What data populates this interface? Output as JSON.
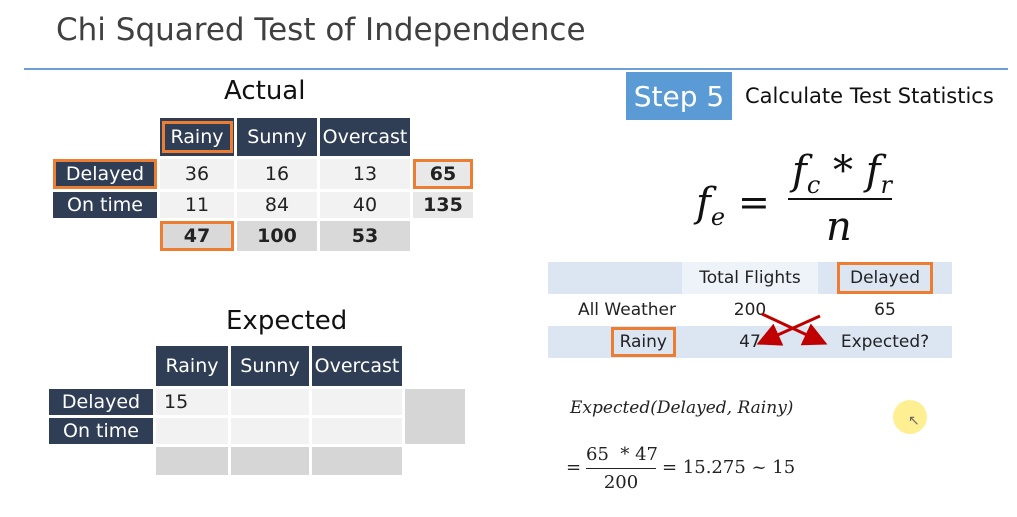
{
  "slide": {
    "title": "Chi Squared Test of Independence"
  },
  "actual": {
    "caption": "Actual",
    "headers": [
      "Rainy",
      "Sunny",
      "Overcast"
    ],
    "rows": [
      {
        "label": "Delayed",
        "values": [
          "36",
          "16",
          "13"
        ],
        "total": "65"
      },
      {
        "label": "On time",
        "values": [
          "11",
          "84",
          "40"
        ],
        "total": "135"
      }
    ],
    "col_totals": [
      "47",
      "100",
      "53"
    ]
  },
  "expected": {
    "caption": "Expected",
    "headers": [
      "Rainy",
      "Sunny",
      "Overcast"
    ],
    "rows": [
      {
        "label": "Delayed",
        "values": [
          "15",
          "",
          ""
        ]
      },
      {
        "label": "On time",
        "values": [
          "",
          "",
          ""
        ]
      }
    ]
  },
  "step": {
    "badge": "Step 5",
    "text": "Calculate Test Statistics"
  },
  "formula": {
    "lhs": "f",
    "lhs_sub": "e",
    "eq": "=",
    "num_a": "f",
    "num_a_sub": "c",
    "num_op": " * ",
    "num_b": "f",
    "num_b_sub": "r",
    "den": "n"
  },
  "flights_table": {
    "headers": [
      "",
      "Total Flights",
      "Delayed"
    ],
    "rows": [
      [
        "All Weather",
        "200",
        "65"
      ],
      [
        "Rainy",
        "47",
        "Expected?"
      ]
    ]
  },
  "calculation": {
    "label": "Expected(Delayed, Rainy)",
    "eq": "=",
    "numerator": "65  * 47",
    "denominator": "200",
    "result": "= 15.275 ~ 15"
  },
  "colors": {
    "header_bg": "#2f3e54",
    "highlight": "#ed7d31",
    "step_bg": "#5b9bd5",
    "rule": "#6d9ed6",
    "band": "#dce6f2",
    "arrow": "#c00000"
  }
}
